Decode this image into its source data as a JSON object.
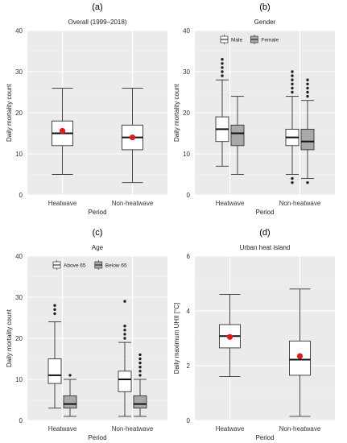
{
  "chart_data": [
    {
      "panel": "(a)",
      "type": "box",
      "title": "Overall (1999–2018)",
      "xlabel": "Period",
      "ylabel": "Daily mortality count",
      "categories": [
        "Heatwave",
        "Non-heatwave"
      ],
      "ylim": [
        0,
        40
      ],
      "yticks": [
        0,
        10,
        20,
        30,
        40
      ],
      "grid": true,
      "legend": null,
      "series": [
        {
          "color": "#ffffff",
          "boxes": [
            {
              "category": "Heatwave",
              "min": 5,
              "q1": 12,
              "median": 15,
              "q3": 18,
              "max": 26,
              "mean": 15.6,
              "outliers": []
            },
            {
              "category": "Non-heatwave",
              "min": 3,
              "q1": 11,
              "median": 14,
              "q3": 17,
              "max": 26,
              "mean": 14,
              "outliers": []
            }
          ]
        }
      ]
    },
    {
      "panel": "(b)",
      "type": "box",
      "title": "Gender",
      "xlabel": "Period",
      "ylabel": "Daily mortality count",
      "categories": [
        "Heatwave",
        "Non-heatwave"
      ],
      "ylim": [
        0,
        40
      ],
      "yticks": [
        0,
        10,
        20,
        30,
        40
      ],
      "grid": true,
      "legend": "top",
      "series": [
        {
          "name": "Male",
          "color": "#ffffff",
          "boxes": [
            {
              "category": "Heatwave",
              "min": 7,
              "q1": 13,
              "median": 16,
              "q3": 19,
              "max": 28,
              "outliers": [
                29,
                30,
                31,
                32,
                33
              ]
            },
            {
              "category": "Non-heatwave",
              "min": 5,
              "q1": 12,
              "median": 14,
              "q3": 16,
              "max": 24,
              "outliers": [
                3,
                4,
                25,
                26,
                27,
                28,
                29,
                30
              ]
            }
          ]
        },
        {
          "name": "Female",
          "color": "#a9a9a9",
          "boxes": [
            {
              "category": "Heatwave",
              "min": 5,
              "q1": 12,
              "median": 15,
              "q3": 17,
              "max": 24,
              "outliers": []
            },
            {
              "category": "Non-heatwave",
              "min": 4,
              "q1": 11,
              "median": 13,
              "q3": 16,
              "max": 23,
              "outliers": [
                3,
                24,
                25,
                26,
                27,
                28
              ]
            }
          ]
        }
      ]
    },
    {
      "panel": "(c)",
      "type": "box",
      "title": "Age",
      "xlabel": "Period",
      "ylabel": "Daily mortality count",
      "categories": [
        "Heatwave",
        "Non-heatwave"
      ],
      "ylim": [
        0,
        40
      ],
      "yticks": [
        0,
        10,
        20,
        30,
        40
      ],
      "grid": true,
      "legend": "top",
      "series": [
        {
          "name": "Above 65",
          "color": "#ffffff",
          "boxes": [
            {
              "category": "Heatwave",
              "min": 3,
              "q1": 9,
              "median": 11,
              "q3": 15,
              "max": 24,
              "outliers": [
                26,
                27,
                28
              ]
            },
            {
              "category": "Non-heatwave",
              "min": 1,
              "q1": 7,
              "median": 10,
              "q3": 12,
              "max": 19,
              "outliers": [
                20,
                21,
                22,
                23,
                29
              ]
            }
          ]
        },
        {
          "name": "Below 65",
          "color": "#a9a9a9",
          "boxes": [
            {
              "category": "Heatwave",
              "min": 1,
              "q1": 3,
              "median": 4,
              "q3": 6,
              "max": 10,
              "outliers": [
                11
              ]
            },
            {
              "category": "Non-heatwave",
              "min": 1,
              "q1": 3,
              "median": 4,
              "q3": 6,
              "max": 10,
              "outliers": [
                11,
                12,
                13,
                14,
                15,
                16
              ]
            }
          ]
        }
      ]
    },
    {
      "panel": "(d)",
      "type": "box",
      "title": "Urban heat island",
      "xlabel": "Period",
      "ylabel": "Daily maximum UHII   [°C]",
      "categories": [
        "Heatwave",
        "Non-heatwave"
      ],
      "ylim": [
        0,
        6
      ],
      "yticks": [
        0,
        2,
        4,
        6
      ],
      "grid": true,
      "legend": null,
      "series": [
        {
          "color": "#ffffff",
          "boxes": [
            {
              "category": "Heatwave",
              "min": 1.6,
              "q1": 2.65,
              "median": 3.08,
              "q3": 3.5,
              "max": 4.6,
              "mean": 3.05,
              "outliers": []
            },
            {
              "category": "Non-heatwave",
              "min": 0.15,
              "q1": 1.65,
              "median": 2.22,
              "q3": 2.9,
              "max": 4.8,
              "mean": 2.35,
              "outliers": []
            }
          ]
        }
      ]
    }
  ]
}
